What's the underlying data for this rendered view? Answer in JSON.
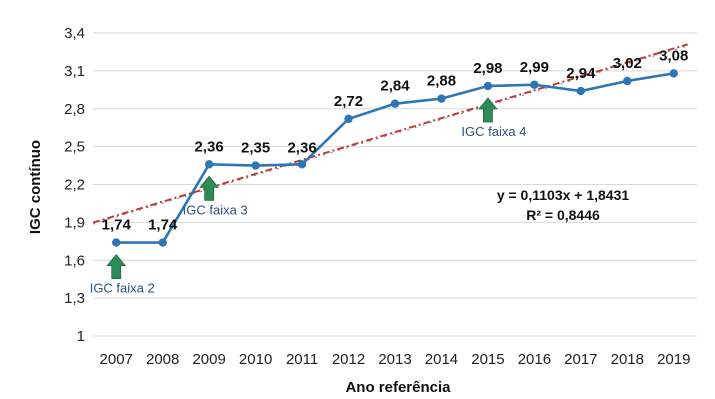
{
  "chart_data": {
    "type": "line",
    "title": "",
    "xlabel": "Ano referência",
    "ylabel": "IGC contínuo",
    "categories": [
      "2007",
      "2008",
      "2009",
      "2010",
      "2011",
      "2012",
      "2013",
      "2014",
      "2015",
      "2016",
      "2017",
      "2018",
      "2019"
    ],
    "x": [
      2007,
      2008,
      2009,
      2010,
      2011,
      2012,
      2013,
      2014,
      2015,
      2016,
      2017,
      2018,
      2019
    ],
    "series": [
      {
        "values": [
          1.74,
          1.74,
          2.36,
          2.35,
          2.36,
          2.72,
          2.84,
          2.88,
          2.98,
          2.99,
          2.94,
          3.02,
          3.08
        ],
        "data_labels": [
          "1,74",
          "1,74",
          "2,36",
          "2,35",
          "2,36",
          "2,72",
          "2,84",
          "2,88",
          "2,98",
          "2,99",
          "2,94",
          "3,02",
          "3,08"
        ],
        "color": "#2e75b6"
      }
    ],
    "trendline": {
      "type": "linear",
      "slope": 0.1103,
      "intercept": 1.8431,
      "r_squared": 0.8446,
      "color": "#c0392b",
      "equation_text": "y = 0,1103x + 1,8431",
      "r2_text": "R² = 0,8446"
    },
    "ylim": [
      1,
      3.4
    ],
    "yticks": [
      1,
      1.3,
      1.6,
      1.9,
      2.2,
      2.5,
      2.8,
      3.1,
      3.4
    ],
    "ytick_labels": [
      "1",
      "1,3",
      "1,6",
      "1,9",
      "2,2",
      "2,5",
      "2,8",
      "3,1",
      "3,4"
    ],
    "grid": "horizontal",
    "legend": "none",
    "annotations": [
      {
        "text": "IGC faixa 2",
        "year": 2007,
        "arrow_color": "#2e8b57"
      },
      {
        "text": "IGC faixa 3",
        "year": 2009,
        "arrow_color": "#2e8b57"
      },
      {
        "text": "IGC faixa 4",
        "year": 2015,
        "arrow_color": "#2e8b57"
      }
    ]
  }
}
